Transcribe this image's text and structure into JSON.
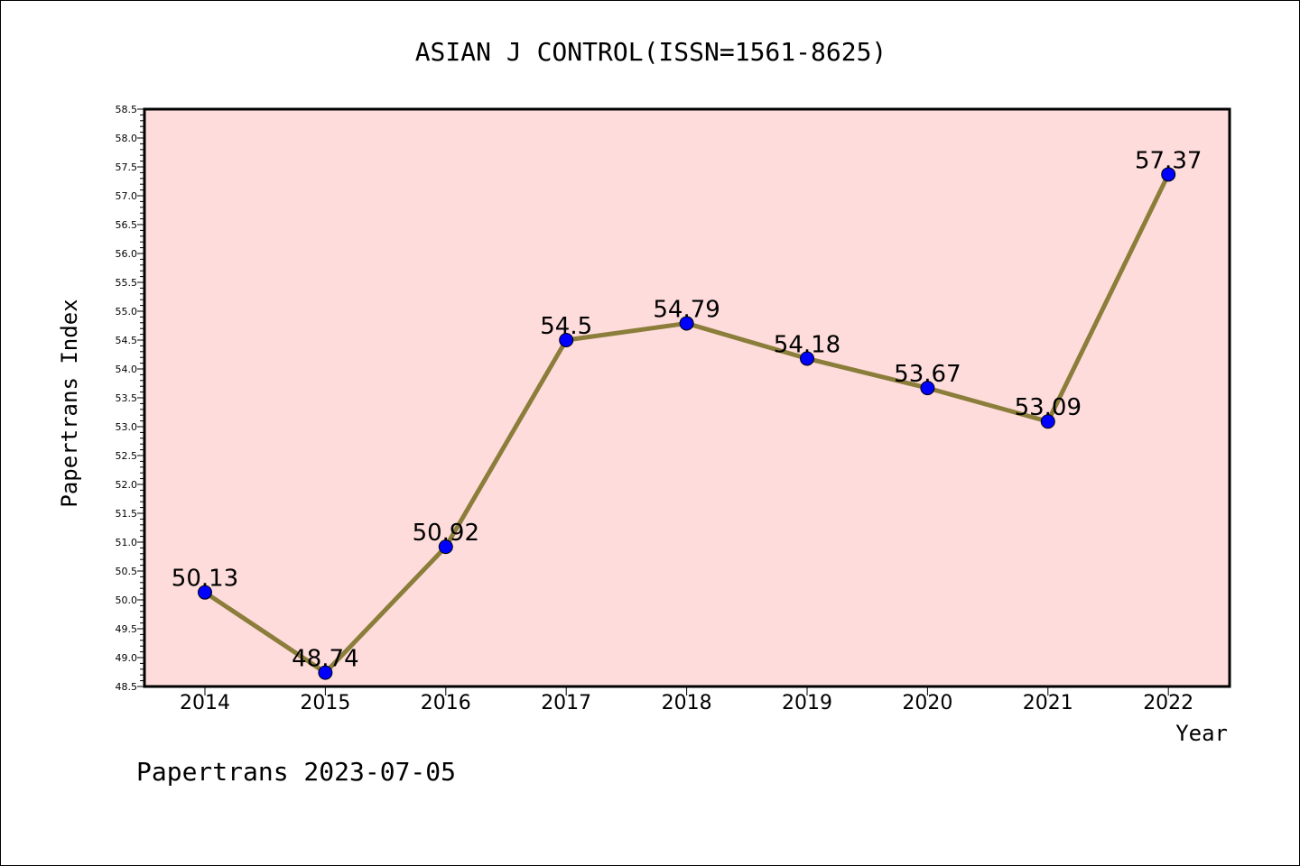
{
  "chart_data": {
    "type": "line",
    "title": "ASIAN J CONTROL(ISSN=1561-8625)",
    "xlabel": "Year",
    "ylabel": "Papertrans Index",
    "x": [
      "2014",
      "2015",
      "2016",
      "2017",
      "2018",
      "2019",
      "2020",
      "2021",
      "2022"
    ],
    "series": [
      {
        "values": [
          50.13,
          48.74,
          50.92,
          54.5,
          54.79,
          54.18,
          53.67,
          53.09,
          57.37
        ],
        "labels": [
          "50.13",
          "48.74",
          "50.92",
          "54.5",
          "54.79",
          "54.18",
          "53.67",
          "53.09",
          "57.37"
        ],
        "line_color": "#8b7d3a",
        "marker_color": "#0000ff"
      }
    ],
    "ylim": [
      48.5,
      58.5
    ],
    "yticks": [
      "48.5",
      "49.0",
      "49.5",
      "50.0",
      "50.5",
      "51.0",
      "51.5",
      "52.0",
      "52.5",
      "53.0",
      "53.5",
      "54.0",
      "54.5",
      "55.0",
      "55.5",
      "56.0",
      "56.5",
      "57.0",
      "57.5",
      "58.0",
      "58.5"
    ],
    "grid": false,
    "legend": "none",
    "plot_background": "#ffdcdc"
  },
  "footer": "Papertrans 2023-07-05"
}
